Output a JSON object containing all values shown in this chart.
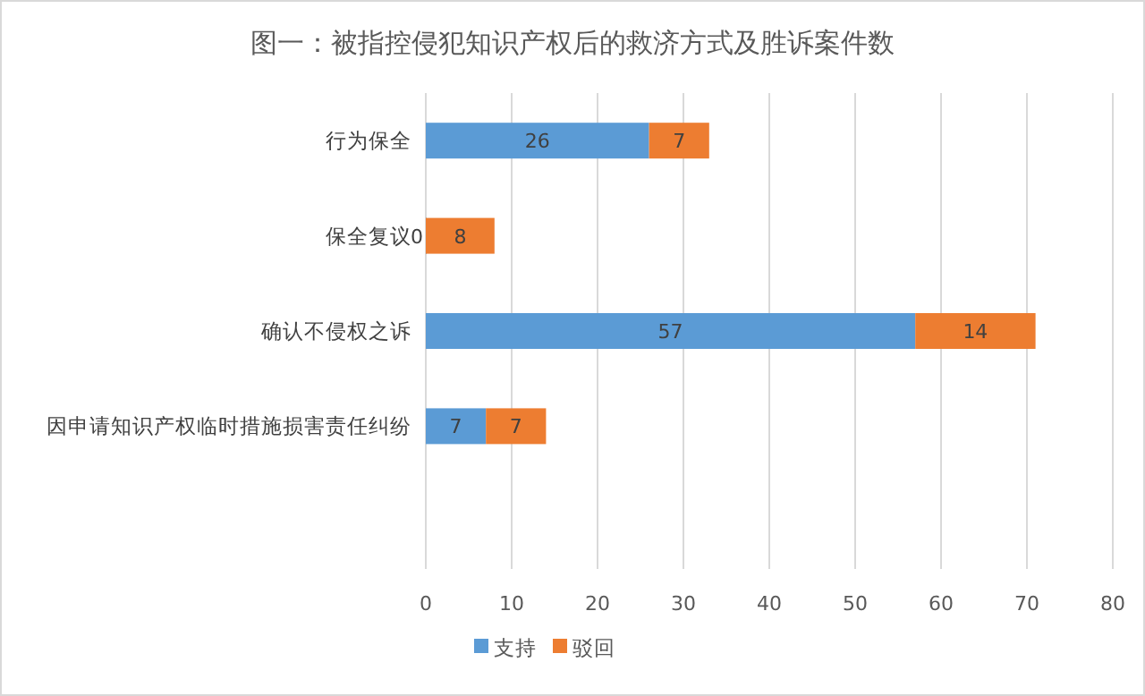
{
  "chart_data": {
    "type": "bar",
    "orientation": "horizontal",
    "stacked": true,
    "title": "图一：被指控侵犯知识产权后的救济方式及胜诉案件数",
    "categories": [
      "行为保全",
      "保全复议",
      "确认不侵权之诉",
      "因申请知识产权临时措施损害责任纠纷",
      null
    ],
    "series": [
      {
        "name": "支持",
        "color": "#5b9bd5",
        "values": [
          26,
          0,
          57,
          7,
          null
        ]
      },
      {
        "name": "驳回",
        "color": "#ed7d31",
        "values": [
          7,
          8,
          14,
          7,
          null
        ]
      }
    ],
    "xlim": [
      0,
      80
    ],
    "xticks": [
      0,
      10,
      20,
      30,
      40,
      50,
      60,
      70,
      80
    ],
    "grid": "x",
    "legend": "bottom",
    "data_labels": true
  }
}
